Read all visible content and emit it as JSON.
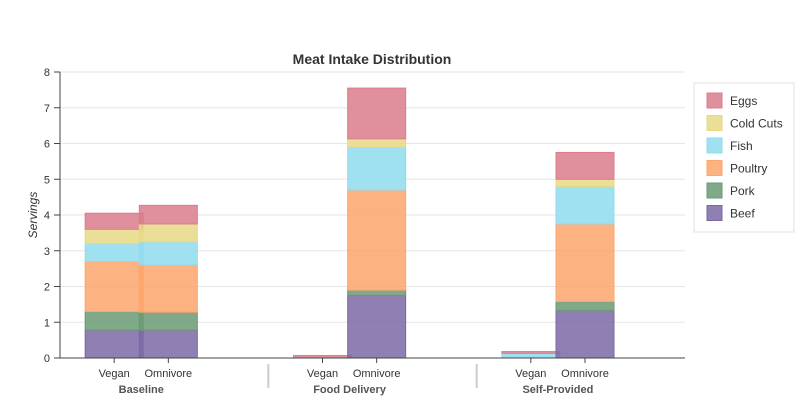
{
  "chart_data": {
    "type": "bar",
    "stacked": true,
    "title": "Meat Intake Distribution",
    "ylabel": "Servings",
    "xlabel": "",
    "ylim": [
      0,
      8
    ],
    "yticks": [
      0,
      1,
      2,
      3,
      4,
      5,
      6,
      7,
      8
    ],
    "grid": true,
    "legend_position": "right",
    "groups": [
      {
        "label": "Baseline",
        "categories": [
          "Vegan",
          "Omnivore"
        ]
      },
      {
        "label": "Food Delivery",
        "categories": [
          "Vegan",
          "Omnivore"
        ]
      },
      {
        "label": "Self-Provided",
        "categories": [
          "Vegan",
          "Omnivore"
        ]
      }
    ],
    "series": [
      {
        "name": "Beef",
        "color": "#7b68a6",
        "values": [
          0.78,
          0.78,
          0.0,
          1.75,
          0.0,
          1.33
        ]
      },
      {
        "name": "Pork",
        "color": "#6a9a74",
        "values": [
          0.52,
          0.5,
          0.0,
          0.15,
          0.0,
          0.25
        ]
      },
      {
        "name": "Poultry",
        "color": "#fda66b",
        "values": [
          1.4,
          1.32,
          0.0,
          2.8,
          0.0,
          2.17
        ]
      },
      {
        "name": "Fish",
        "color": "#8fdcef",
        "values": [
          0.5,
          0.65,
          0.0,
          1.2,
          0.13,
          1.05
        ]
      },
      {
        "name": "Cold Cuts",
        "color": "#e7d986",
        "values": [
          0.4,
          0.5,
          0.0,
          0.23,
          0.0,
          0.2
        ]
      },
      {
        "name": "Eggs",
        "color": "#db7d8c",
        "values": [
          0.45,
          0.52,
          0.07,
          1.42,
          0.05,
          0.75
        ]
      }
    ]
  }
}
